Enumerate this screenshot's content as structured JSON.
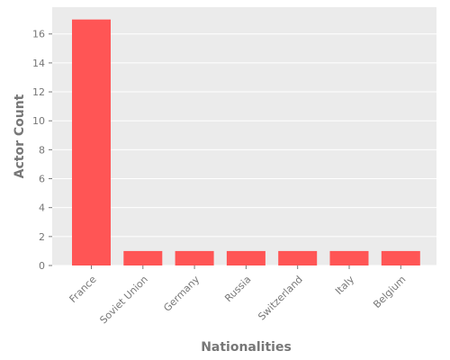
{
  "chart_data": {
    "type": "bar",
    "title": "",
    "xlabel": "Nationalities",
    "ylabel": "Actor Count",
    "categories": [
      "France",
      "Soviet Union",
      "Germany",
      "Russia",
      "Switzerland",
      "Italy",
      "Belgium"
    ],
    "values": [
      17,
      1,
      1,
      1,
      1,
      1,
      1
    ],
    "ylim": [
      0,
      17.85
    ],
    "yticks": [
      0,
      2,
      4,
      6,
      8,
      10,
      12,
      14,
      16
    ],
    "grid": true,
    "style": {
      "bar_color": "#ff5555",
      "plot_background": "#ebebeb",
      "grid_color": "#ffffff",
      "text_color": "#777777"
    }
  }
}
